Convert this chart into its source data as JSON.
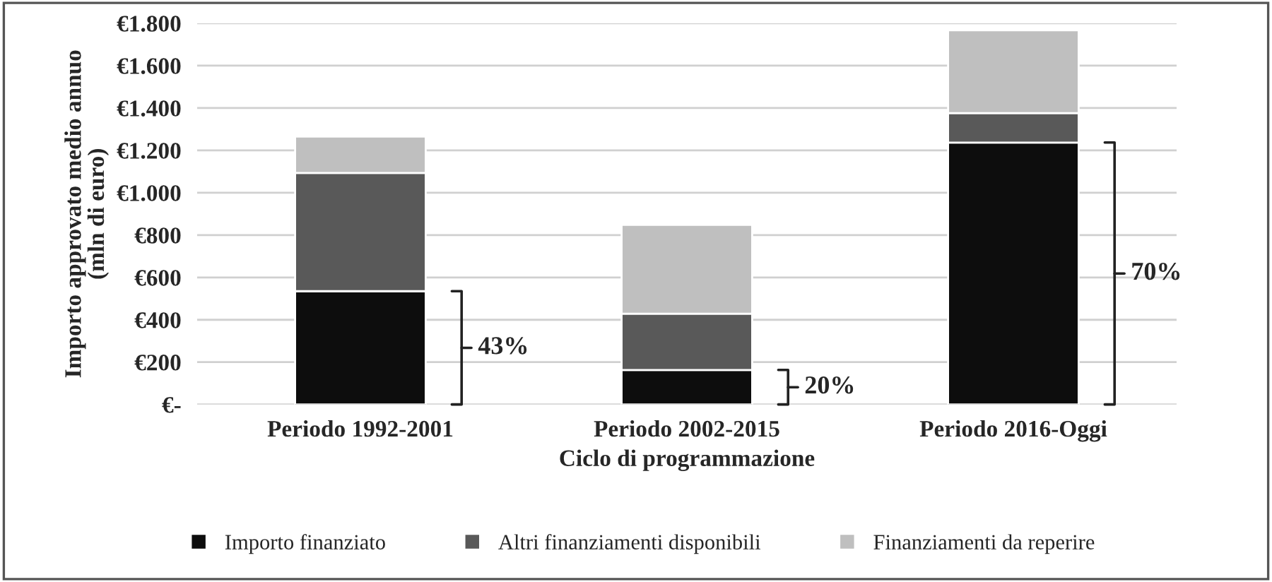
{
  "chart_data": {
    "type": "bar",
    "stacked": true,
    "xlabel": "Ciclo di programmazione",
    "ylabel": "Importo approvato medio annuo\n(mln di euro)",
    "categories": [
      "Periodo 1992-2001",
      "Periodo 2002-2015",
      "Periodo 2016-Oggi"
    ],
    "series": [
      {
        "name": "Importo finanziato",
        "color": "#0d0d0d",
        "values": [
          535,
          163,
          1237
        ]
      },
      {
        "name": "Altri finanziamenti disponibili",
        "color": "#595959",
        "values": [
          558,
          266,
          139
        ]
      },
      {
        "name": "Finanziamenti da reperire",
        "color": "#bfbfbf",
        "values": [
          172,
          419,
          391
        ]
      }
    ],
    "ylim": [
      0,
      1800
    ],
    "yticks": [
      {
        "value": 0,
        "label": "€-"
      },
      {
        "value": 200,
        "label": "€200"
      },
      {
        "value": 400,
        "label": "€400"
      },
      {
        "value": 600,
        "label": "€600"
      },
      {
        "value": 800,
        "label": "€800"
      },
      {
        "value": 1000,
        "label": "€1.000"
      },
      {
        "value": 1200,
        "label": "€1.200"
      },
      {
        "value": 1400,
        "label": "€1.400"
      },
      {
        "value": 1600,
        "label": "€1.600"
      },
      {
        "value": 1800,
        "label": "€1.800"
      }
    ],
    "grid": "y",
    "legend": "bottom",
    "annotations": [
      "43%",
      "20%",
      "70%"
    ]
  }
}
